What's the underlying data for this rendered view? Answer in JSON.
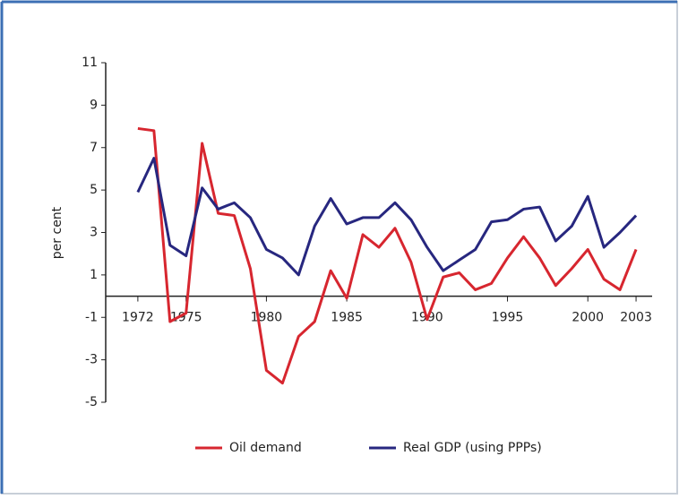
{
  "chart_data": {
    "type": "line",
    "y_label": "per cent",
    "x": [
      1972,
      1973,
      1974,
      1975,
      1976,
      1977,
      1978,
      1979,
      1980,
      1981,
      1982,
      1983,
      1984,
      1985,
      1986,
      1987,
      1988,
      1989,
      1990,
      1991,
      1992,
      1993,
      1994,
      1995,
      1996,
      1997,
      1998,
      1999,
      2000,
      2001,
      2002,
      2003
    ],
    "series": [
      {
        "name": "Oil demand",
        "color": "#d7262f",
        "values": [
          7.9,
          7.8,
          -1.2,
          -0.8,
          7.2,
          3.9,
          3.8,
          1.3,
          -3.5,
          -4.1,
          -1.9,
          -1.2,
          1.2,
          -0.1,
          2.9,
          2.3,
          3.2,
          1.6,
          -1.1,
          0.9,
          1.1,
          0.3,
          0.6,
          1.8,
          2.8,
          1.8,
          0.5,
          1.3,
          2.2,
          0.8,
          0.3,
          2.2
        ]
      },
      {
        "name": "Real GDP (using PPPs)",
        "color": "#27277f",
        "values": [
          4.9,
          6.5,
          2.4,
          1.9,
          5.1,
          4.1,
          4.4,
          3.7,
          2.2,
          1.8,
          1.0,
          3.3,
          4.6,
          3.4,
          3.7,
          3.7,
          4.4,
          3.6,
          2.3,
          1.2,
          1.7,
          2.2,
          3.5,
          3.6,
          4.1,
          4.2,
          2.6,
          3.3,
          4.7,
          2.3,
          3.0,
          3.8
        ]
      }
    ],
    "xlim": [
      1970,
      2004
    ],
    "xticks": [
      1972,
      1975,
      1980,
      1985,
      1990,
      1995,
      2000,
      2003
    ],
    "ylim": [
      -5,
      11
    ],
    "yticks": [
      -5,
      -3,
      -1,
      1,
      3,
      5,
      7,
      9,
      11
    ],
    "legend": "bottom"
  }
}
